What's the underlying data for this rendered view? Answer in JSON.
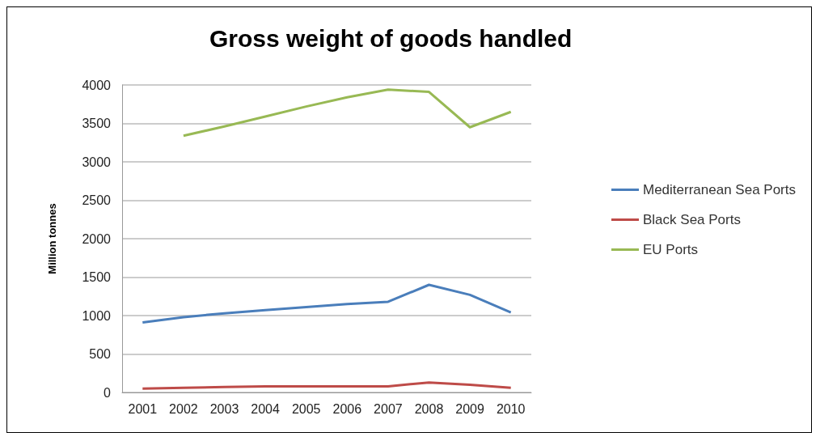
{
  "chart_data": {
    "type": "line",
    "title": "Gross weight of goods handled",
    "ylabel": "Million tonnes",
    "categories": [
      "2001",
      "2002",
      "2003",
      "2004",
      "2005",
      "2006",
      "2007",
      "2008",
      "2009",
      "2010"
    ],
    "series": [
      {
        "name": "Mediterranean Sea Ports",
        "color": "#4a7ebb",
        "values": [
          910,
          980,
          1030,
          1070,
          1110,
          1150,
          1180,
          1400,
          1270,
          1040
        ]
      },
      {
        "name": "Black Sea Ports",
        "color": "#be4b48",
        "values": [
          50,
          60,
          70,
          80,
          80,
          80,
          80,
          130,
          100,
          60
        ]
      },
      {
        "name": "EU Ports",
        "color": "#98b954",
        "values": [
          null,
          3340,
          3460,
          3590,
          3720,
          3840,
          3940,
          3910,
          3450,
          3650
        ]
      }
    ],
    "ylim": [
      0,
      4000
    ],
    "yticks": [
      0,
      500,
      1000,
      1500,
      2000,
      2500,
      3000,
      3500,
      4000
    ],
    "grid": "y",
    "legend": "right",
    "marker": "none",
    "line_style": "solid"
  }
}
